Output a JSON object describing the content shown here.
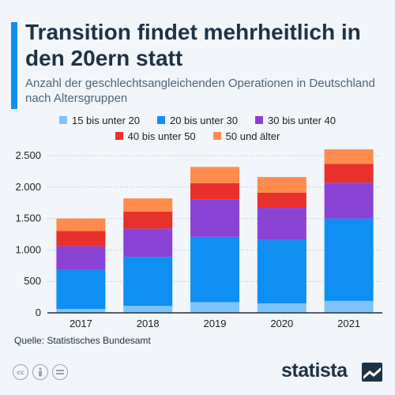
{
  "header": {
    "title": "Transition findet mehrheitlich in den 20ern statt",
    "subtitle": "Anzahl der geschlechtsangleichenden Operationen in Deutschland nach Altersgruppen"
  },
  "footer": {
    "source": "Quelle: Statistisches Bundesamt",
    "brand": "statista",
    "cc_icons": [
      "cc-icon",
      "attribution-icon",
      "equals-icon"
    ]
  },
  "colors": {
    "accent": "#0f8ff2",
    "title": "#1e3246",
    "axis": "#1e3246",
    "grid": "#c9d2dc"
  },
  "chart_data": {
    "type": "bar",
    "stacked": true,
    "categories": [
      "2017",
      "2018",
      "2019",
      "2020",
      "2021"
    ],
    "ylim": [
      0,
      2500
    ],
    "yticks": [
      0,
      500,
      1000,
      1500,
      2000,
      2500
    ],
    "ytick_labels": [
      "0",
      "500",
      "1.000",
      "1.500",
      "2.000",
      "2.500"
    ],
    "grid": true,
    "legend": "top",
    "series": [
      {
        "name": "15 bis unter 20",
        "color": "#7fc3f7",
        "values": [
          60,
          110,
          170,
          150,
          190
        ]
      },
      {
        "name": "20 bis unter 30",
        "color": "#0f8ff2",
        "values": [
          620,
          780,
          1040,
          1010,
          1310
        ]
      },
      {
        "name": "30 bis unter 40",
        "color": "#8b43d6",
        "values": [
          380,
          450,
          590,
          510,
          570
        ]
      },
      {
        "name": "40 bis unter 50",
        "color": "#e8302d",
        "values": [
          240,
          270,
          260,
          240,
          300
        ]
      },
      {
        "name": "50 und älter",
        "color": "#ff8c4c",
        "values": [
          200,
          210,
          260,
          250,
          230
        ]
      }
    ]
  }
}
